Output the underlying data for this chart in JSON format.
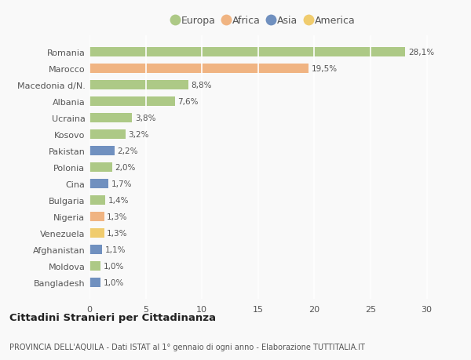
{
  "countries": [
    "Romania",
    "Marocco",
    "Macedonia d/N.",
    "Albania",
    "Ucraina",
    "Kosovo",
    "Pakistan",
    "Polonia",
    "Cina",
    "Bulgaria",
    "Nigeria",
    "Venezuela",
    "Afghanistan",
    "Moldova",
    "Bangladesh"
  ],
  "values": [
    28.1,
    19.5,
    8.8,
    7.6,
    3.8,
    3.2,
    2.2,
    2.0,
    1.7,
    1.4,
    1.3,
    1.3,
    1.1,
    1.0,
    1.0
  ],
  "labels": [
    "28,1%",
    "19,5%",
    "8,8%",
    "7,6%",
    "3,8%",
    "3,2%",
    "2,2%",
    "2,0%",
    "1,7%",
    "1,4%",
    "1,3%",
    "1,3%",
    "1,1%",
    "1,0%",
    "1,0%"
  ],
  "continent": [
    "Europa",
    "Africa",
    "Europa",
    "Europa",
    "Europa",
    "Europa",
    "Asia",
    "Europa",
    "Asia",
    "Europa",
    "Africa",
    "America",
    "Asia",
    "Europa",
    "Asia"
  ],
  "colors": {
    "Europa": "#adc986",
    "Africa": "#f0b482",
    "Asia": "#7090bf",
    "America": "#f0cc6e"
  },
  "xlim": [
    0,
    31
  ],
  "xticks": [
    0,
    5,
    10,
    15,
    20,
    25,
    30
  ],
  "title": "Cittadini Stranieri per Cittadinanza",
  "subtitle": "PROVINCIA DELL'AQUILA - Dati ISTAT al 1° gennaio di ogni anno - Elaborazione TUTTITALIA.IT",
  "bg_color": "#f9f9f9",
  "plot_bg": "#f9f9f9",
  "grid_color": "#ffffff",
  "bar_height": 0.55,
  "legend_entries": [
    "Europa",
    "Africa",
    "Asia",
    "America"
  ]
}
